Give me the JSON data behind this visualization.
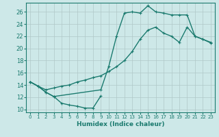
{
  "xlabel": "Humidex (Indice chaleur)",
  "bg_color": "#cde8e8",
  "grid_color": "#b0c8c8",
  "line_color": "#1a7a6e",
  "xlim": [
    -0.5,
    23.5
  ],
  "ylim": [
    9.5,
    27.5
  ],
  "xticks": [
    0,
    1,
    2,
    3,
    4,
    5,
    6,
    7,
    8,
    9,
    10,
    11,
    12,
    13,
    14,
    15,
    16,
    17,
    18,
    19,
    20,
    21,
    22,
    23
  ],
  "yticks": [
    10,
    12,
    14,
    16,
    18,
    20,
    22,
    24,
    26
  ],
  "curve1_x": [
    0,
    1,
    2,
    3,
    4,
    5,
    6,
    7,
    8,
    9
  ],
  "curve1_y": [
    14.5,
    13.8,
    12.8,
    12.1,
    11.0,
    10.7,
    10.5,
    10.2,
    10.2,
    12.2
  ],
  "curve2_x": [
    0,
    1,
    2,
    3,
    9,
    10,
    11,
    12,
    13,
    14,
    15,
    16,
    17,
    18,
    19,
    20,
    21,
    22,
    23
  ],
  "curve2_y": [
    14.5,
    13.8,
    12.8,
    12.1,
    13.2,
    17.0,
    22.0,
    25.8,
    26.0,
    25.8,
    27.0,
    26.0,
    25.8,
    25.5,
    25.5,
    25.5,
    22.0,
    21.5,
    20.9
  ],
  "curve3_x": [
    0,
    1,
    2,
    3,
    4,
    5,
    6,
    7,
    8,
    9,
    10,
    11,
    12,
    13,
    14,
    15,
    16,
    17,
    18,
    19,
    20,
    21,
    22,
    23
  ],
  "curve3_y": [
    14.5,
    13.8,
    13.2,
    13.5,
    13.8,
    14.0,
    14.5,
    14.8,
    15.2,
    15.5,
    16.2,
    17.0,
    18.0,
    19.5,
    21.5,
    23.0,
    23.5,
    22.5,
    22.0,
    21.0,
    23.5,
    22.0,
    21.5,
    21.0
  ]
}
